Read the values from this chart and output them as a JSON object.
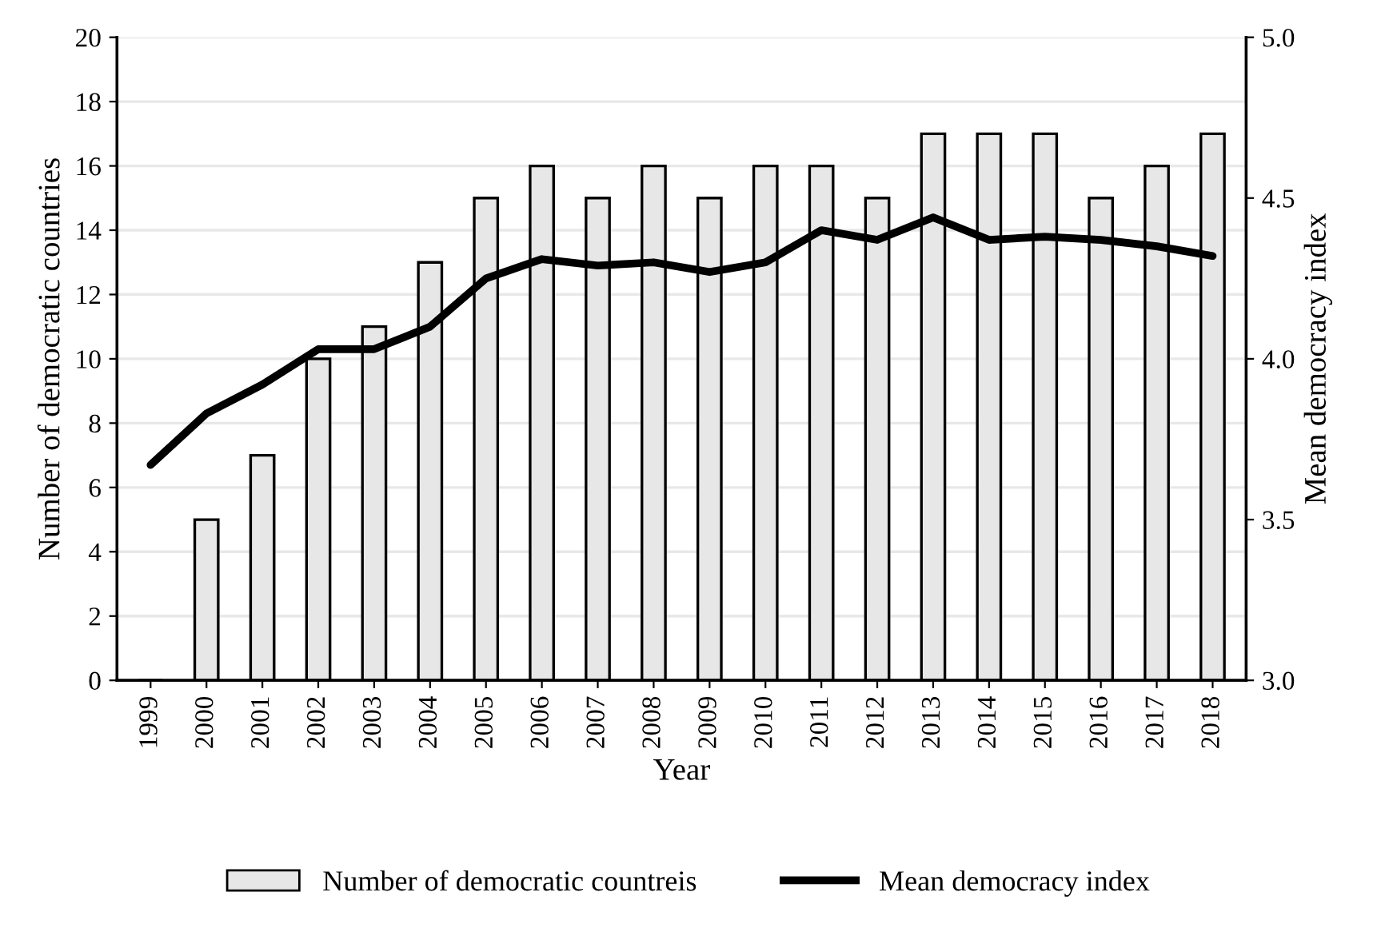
{
  "chart_data": {
    "type": "bar",
    "xlabel": "Year",
    "ylabel": "Number of democratic countries",
    "y2label": "Mean democracy index",
    "categories": [
      "1999",
      "2000",
      "2001",
      "2002",
      "2003",
      "2004",
      "2005",
      "2006",
      "2007",
      "2008",
      "2009",
      "2010",
      "2011",
      "2012",
      "2013",
      "2014",
      "2015",
      "2016",
      "2017",
      "2018"
    ],
    "series": [
      {
        "name": "Number of democratic countreis",
        "color": "#e7e7e7",
        "values": [
          0,
          5,
          7,
          10,
          11,
          13,
          15,
          16,
          15,
          16,
          15,
          16,
          16,
          15,
          17,
          17,
          17,
          15,
          16,
          17
        ]
      },
      {
        "name": "Mean democracy index",
        "color": "#000000",
        "type": "line",
        "axis": "y2",
        "values": [
          3.67,
          3.83,
          3.92,
          4.03,
          4.03,
          4.1,
          4.25,
          4.31,
          4.29,
          4.3,
          4.27,
          4.3,
          4.4,
          4.37,
          4.44,
          4.37,
          4.38,
          4.37,
          4.35,
          4.32
        ]
      }
    ],
    "ylim": [
      0,
      20
    ],
    "yticks": [
      0,
      2,
      4,
      6,
      8,
      10,
      12,
      14,
      16,
      18,
      20
    ],
    "y2lim": [
      3.0,
      5.0
    ],
    "y2ticks": [
      {
        "value": 3.0,
        "label": "3.0"
      },
      {
        "value": 3.5,
        "label": "3.5"
      },
      {
        "value": 4.0,
        "label": "4.0"
      },
      {
        "value": 4.5,
        "label": "4.5"
      },
      {
        "value": 5.0,
        "label": "5.0"
      }
    ],
    "grid": "y",
    "legend": "bottom",
    "line_style": "solid"
  }
}
